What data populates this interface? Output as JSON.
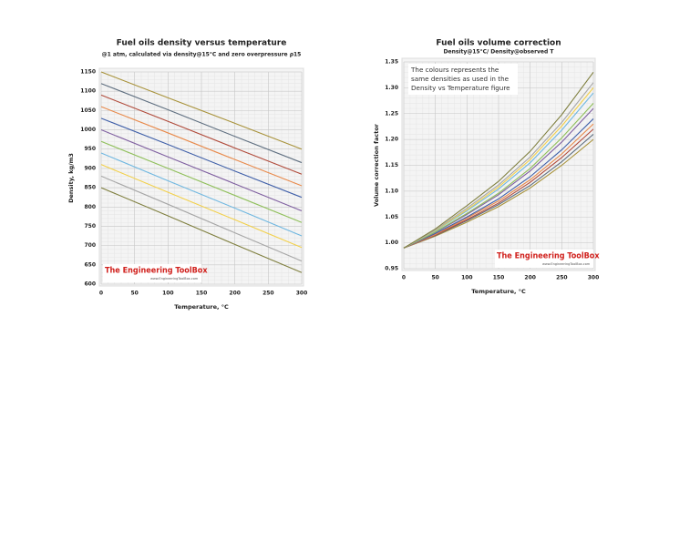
{
  "chart_data": [
    {
      "type": "line",
      "title": "Fuel oils density versus temperature",
      "subtitle": "@1 atm, calculated via density@15°C and zero overpressure ρ15",
      "x_label": "Temperature, °C",
      "y_label": "Density, kg/m3",
      "watermark": "The Engineering ToolBox",
      "watermark_url": "www.EngineeringToolBox.com",
      "x": [
        0,
        100,
        200,
        300
      ],
      "xlim": [
        0,
        300
      ],
      "xticks": [
        0,
        50,
        100,
        150,
        200,
        250,
        300
      ],
      "ylim": [
        600,
        1150
      ],
      "yticks": [
        600,
        650,
        700,
        750,
        800,
        850,
        900,
        950,
        1000,
        1050,
        1100,
        1150
      ],
      "grid": true,
      "series": [
        {
          "color": "#7f7f3f",
          "values": [
            850,
            777,
            703,
            630
          ]
        },
        {
          "color": "#a6a6a6",
          "values": [
            880,
            807,
            733,
            660
          ]
        },
        {
          "color": "#f2d04a",
          "values": [
            910,
            838,
            767,
            695
          ]
        },
        {
          "color": "#6fb7e0",
          "values": [
            940,
            868,
            797,
            725
          ]
        },
        {
          "color": "#8fbf5a",
          "values": [
            970,
            900,
            830,
            760
          ]
        },
        {
          "color": "#7f5fa0",
          "values": [
            1000,
            930,
            860,
            790
          ]
        },
        {
          "color": "#3f5fa8",
          "values": [
            1030,
            962,
            893,
            825
          ]
        },
        {
          "color": "#e8894a",
          "values": [
            1060,
            992,
            923,
            855
          ]
        },
        {
          "color": "#b04a3a",
          "values": [
            1090,
            1022,
            953,
            885
          ]
        },
        {
          "color": "#5f6f80",
          "values": [
            1120,
            1052,
            983,
            915
          ]
        },
        {
          "color": "#a8923a",
          "values": [
            1150,
            1083,
            1017,
            950
          ]
        }
      ]
    },
    {
      "type": "line",
      "title": "Fuel oils volume correction",
      "subtitle": "Density@15°C/ Density@observed T",
      "x_label": "Temperature, °C",
      "y_label": "Volume correction factor",
      "annotation": "The colours represents the same densities as used in the Density vs Temperature figure",
      "watermark": "The Engineering ToolBox",
      "watermark_url": "www.EngineeringToolBox.com",
      "x": [
        0,
        50,
        100,
        150,
        200,
        250,
        300
      ],
      "xlim": [
        0,
        300
      ],
      "xticks": [
        0,
        50,
        100,
        150,
        200,
        250,
        300
      ],
      "ylim": [
        0.95,
        1.35
      ],
      "yticks": [
        0.95,
        {
          "value": 1,
          "label": "1.00"
        },
        1.05,
        {
          "value": 1.1,
          "label": "1.10"
        },
        1.15,
        {
          "value": 1.2,
          "label": "1.20"
        },
        1.25,
        {
          "value": 1.3,
          "label": "1.30"
        },
        1.35
      ],
      "grid": true,
      "series": [
        {
          "color": "#a8923a",
          "values": [
            0.99,
            1.013,
            1.04,
            1.07,
            1.106,
            1.15,
            1.2
          ]
        },
        {
          "color": "#5f6f80",
          "values": [
            0.99,
            1.014,
            1.043,
            1.074,
            1.111,
            1.157,
            1.21
          ]
        },
        {
          "color": "#b04a3a",
          "values": [
            0.99,
            1.015,
            1.045,
            1.077,
            1.117,
            1.165,
            1.22
          ]
        },
        {
          "color": "#e8894a",
          "values": [
            0.99,
            1.016,
            1.048,
            1.081,
            1.122,
            1.172,
            1.23
          ]
        },
        {
          "color": "#3f5fa8",
          "values": [
            0.99,
            1.018,
            1.05,
            1.085,
            1.128,
            1.18,
            1.24
          ]
        },
        {
          "color": "#7f5fa0",
          "values": [
            0.99,
            1.02,
            1.055,
            1.093,
            1.139,
            1.195,
            1.26
          ]
        },
        {
          "color": "#8fbf5a",
          "values": [
            0.99,
            1.021,
            1.057,
            1.096,
            1.144,
            1.203,
            1.27
          ]
        },
        {
          "color": "#6fb7e0",
          "values": [
            0.99,
            1.023,
            1.062,
            1.104,
            1.155,
            1.218,
            1.29
          ]
        },
        {
          "color": "#f2d04a",
          "values": [
            0.99,
            1.024,
            1.064,
            1.108,
            1.161,
            1.226,
            1.3
          ]
        },
        {
          "color": "#a6a6a6",
          "values": [
            0.99,
            1.025,
            1.067,
            1.112,
            1.166,
            1.233,
            1.31
          ]
        },
        {
          "color": "#7f7f3f",
          "values": [
            0.99,
            1.027,
            1.072,
            1.119,
            1.177,
            1.248,
            1.33
          ]
        }
      ]
    }
  ]
}
